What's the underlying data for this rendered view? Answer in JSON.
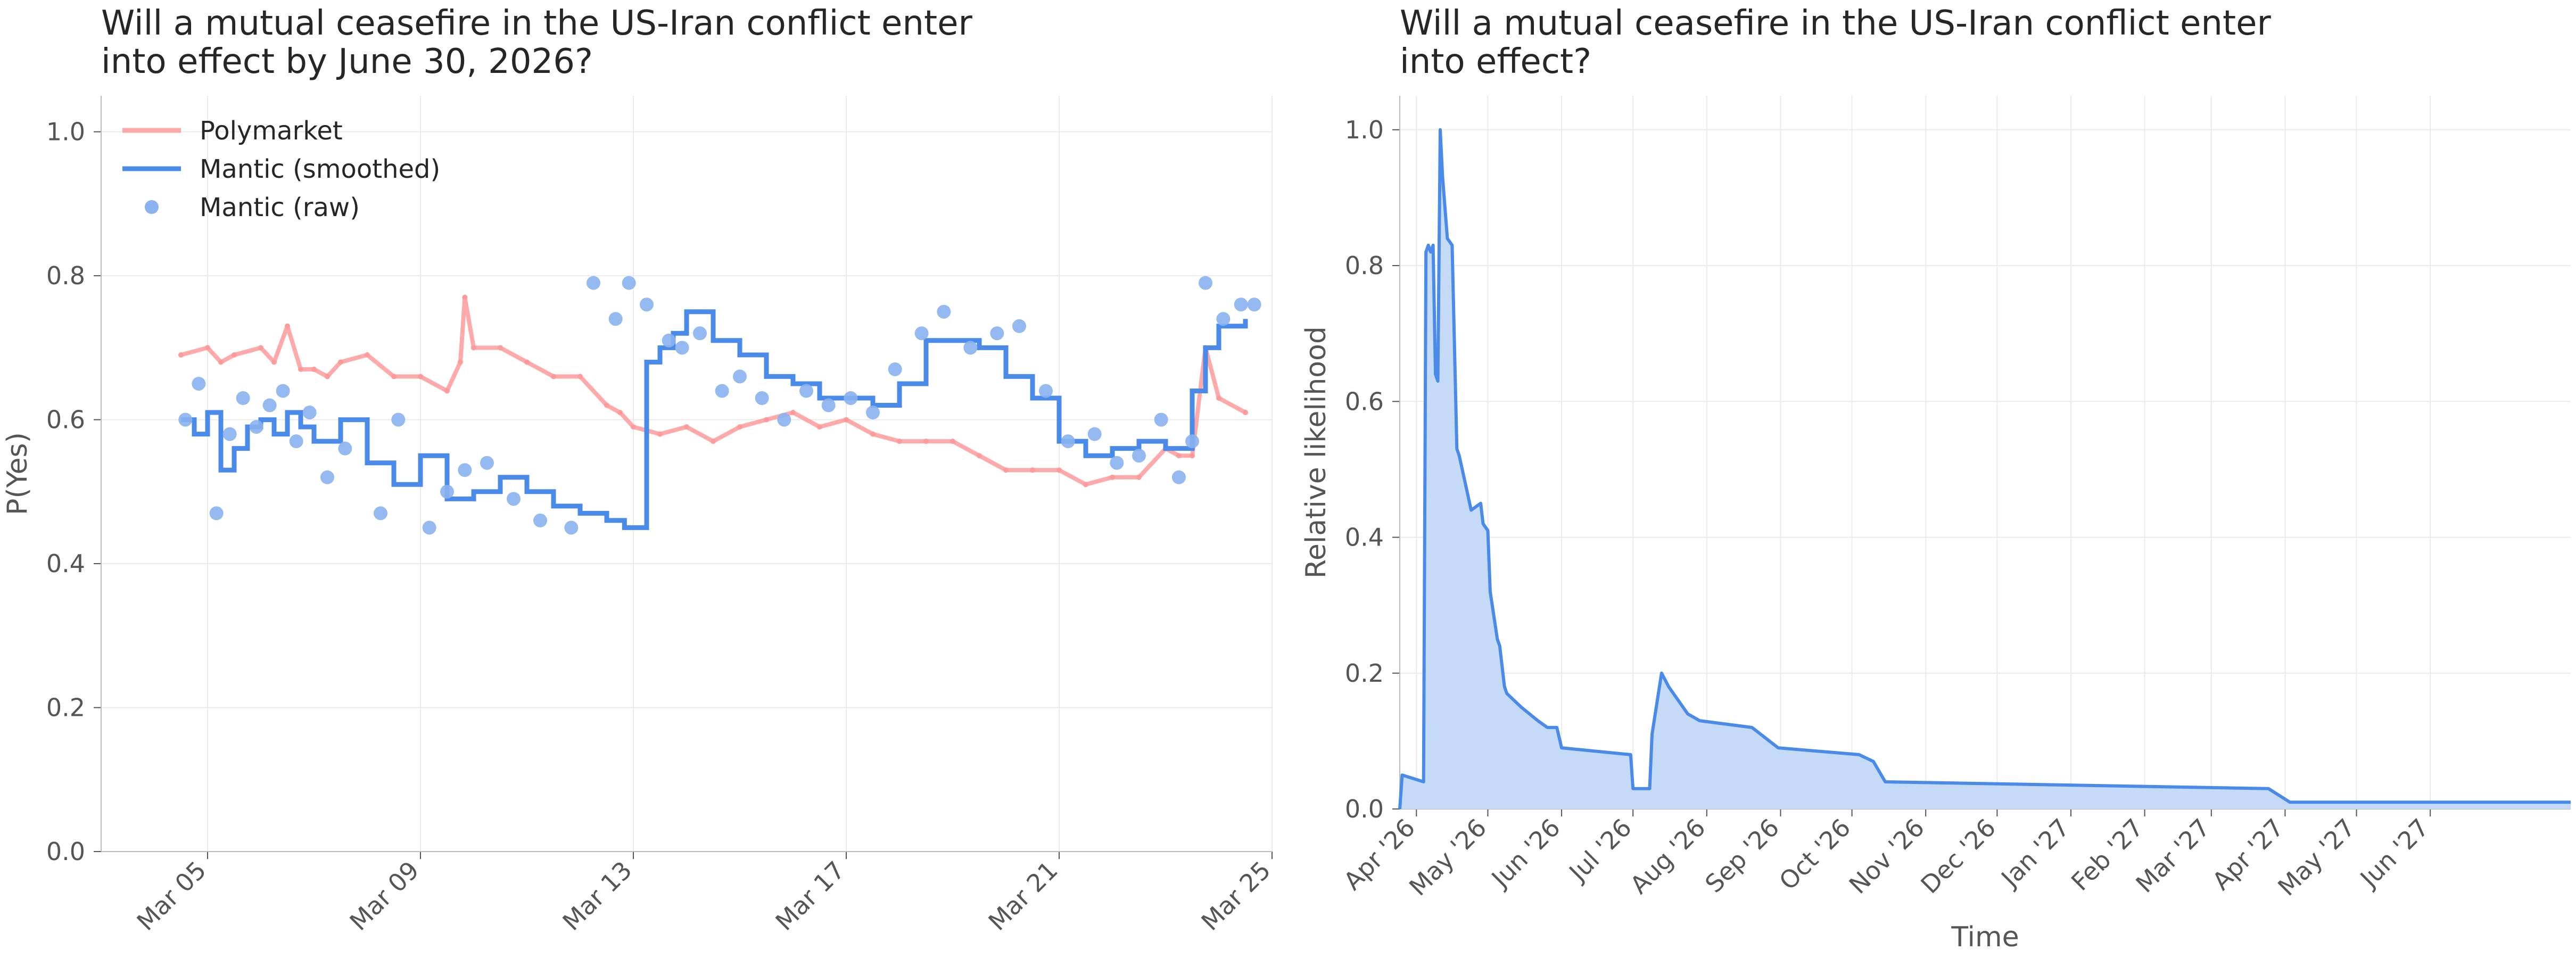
{
  "chart_data": [
    {
      "type": "line",
      "title": "Will a mutual ceasefire in the US-Iran conflict enter\ninto effect by June 30, 2026?",
      "xlabel": "",
      "ylabel": "P(Yes)",
      "xlim": [
        "2026-03-03",
        "2026-03-25"
      ],
      "ylim": [
        0,
        1.05
      ],
      "x_ticks": [
        "Mar 05",
        "Mar 09",
        "Mar 13",
        "Mar 17",
        "Mar 21",
        "Mar 25"
      ],
      "x_tick_dates": [
        "2026-03-05",
        "2026-03-09",
        "2026-03-13",
        "2026-03-17",
        "2026-03-21",
        "2026-03-25"
      ],
      "y_ticks": [
        "0.0",
        "0.2",
        "0.4",
        "0.6",
        "0.8",
        "1.0"
      ],
      "grid": true,
      "legend_position": "top-left",
      "legend": [
        "Polymarket",
        "Mantic (smoothed)",
        "Mantic (raw)"
      ],
      "colors": {
        "polymarket": "#ff9b9b",
        "mantic": "#4a8ae8",
        "raw": "#8ab3f0"
      },
      "series": [
        {
          "name": "Polymarket",
          "style": "line",
          "x": [
            "2026-03-04T12:00",
            "2026-03-05T00:00",
            "2026-03-05T06:00",
            "2026-03-05T12:00",
            "2026-03-06T00:00",
            "2026-03-06T06:00",
            "2026-03-06T12:00",
            "2026-03-06T18:00",
            "2026-03-07T00:00",
            "2026-03-07T06:00",
            "2026-03-07T12:00",
            "2026-03-08T00:00",
            "2026-03-08T12:00",
            "2026-03-09T00:00",
            "2026-03-09T12:00",
            "2026-03-09T18:00",
            "2026-03-09T20:00",
            "2026-03-10T00:00",
            "2026-03-10T12:00",
            "2026-03-11T00:00",
            "2026-03-11T12:00",
            "2026-03-12T00:00",
            "2026-03-12T12:00",
            "2026-03-12T18:00",
            "2026-03-13T00:00",
            "2026-03-13T12:00",
            "2026-03-14T00:00",
            "2026-03-14T12:00",
            "2026-03-15T00:00",
            "2026-03-15T12:00",
            "2026-03-16T00:00",
            "2026-03-16T12:00",
            "2026-03-17T00:00",
            "2026-03-17T12:00",
            "2026-03-18T00:00",
            "2026-03-18T12:00",
            "2026-03-19T00:00",
            "2026-03-19T12:00",
            "2026-03-20T00:00",
            "2026-03-20T12:00",
            "2026-03-21T00:00",
            "2026-03-21T12:00",
            "2026-03-22T00:00",
            "2026-03-22T12:00",
            "2026-03-23T00:00",
            "2026-03-23T06:00",
            "2026-03-23T12:00",
            "2026-03-23T18:00",
            "2026-03-24T00:00",
            "2026-03-24T12:00"
          ],
          "values": [
            0.69,
            0.7,
            0.68,
            0.69,
            0.7,
            0.68,
            0.73,
            0.67,
            0.67,
            0.66,
            0.68,
            0.69,
            0.66,
            0.66,
            0.64,
            0.68,
            0.77,
            0.7,
            0.7,
            0.68,
            0.66,
            0.66,
            0.62,
            0.61,
            0.59,
            0.58,
            0.59,
            0.57,
            0.59,
            0.6,
            0.61,
            0.59,
            0.6,
            0.58,
            0.57,
            0.57,
            0.57,
            0.55,
            0.53,
            0.53,
            0.53,
            0.51,
            0.52,
            0.52,
            0.56,
            0.55,
            0.55,
            0.7,
            0.63,
            0.61
          ]
        },
        {
          "name": "Mantic (smoothed)",
          "style": "step",
          "x": [
            "2026-03-04T12:00",
            "2026-03-04T18:00",
            "2026-03-05T00:00",
            "2026-03-05T06:00",
            "2026-03-05T12:00",
            "2026-03-05T18:00",
            "2026-03-06T00:00",
            "2026-03-06T06:00",
            "2026-03-06T12:00",
            "2026-03-06T18:00",
            "2026-03-07T00:00",
            "2026-03-07T12:00",
            "2026-03-08T00:00",
            "2026-03-08T12:00",
            "2026-03-09T00:00",
            "2026-03-09T12:00",
            "2026-03-10T00:00",
            "2026-03-10T12:00",
            "2026-03-11T00:00",
            "2026-03-11T12:00",
            "2026-03-12T00:00",
            "2026-03-12T12:00",
            "2026-03-12T20:00",
            "2026-03-13T06:00",
            "2026-03-13T12:00",
            "2026-03-13T18:00",
            "2026-03-14T00:00",
            "2026-03-14T12:00",
            "2026-03-15T00:00",
            "2026-03-15T12:00",
            "2026-03-16T00:00",
            "2026-03-16T12:00",
            "2026-03-17T00:00",
            "2026-03-17T12:00",
            "2026-03-18T00:00",
            "2026-03-18T12:00",
            "2026-03-19T00:00",
            "2026-03-19T12:00",
            "2026-03-20T00:00",
            "2026-03-20T12:00",
            "2026-03-21T00:00",
            "2026-03-21T12:00",
            "2026-03-22T00:00",
            "2026-03-22T12:00",
            "2026-03-23T00:00",
            "2026-03-23T06:00",
            "2026-03-23T12:00",
            "2026-03-23T18:00",
            "2026-03-24T00:00",
            "2026-03-24T12:00"
          ],
          "values": [
            0.6,
            0.58,
            0.61,
            0.53,
            0.56,
            0.59,
            0.6,
            0.58,
            0.61,
            0.59,
            0.57,
            0.6,
            0.54,
            0.51,
            0.55,
            0.49,
            0.5,
            0.52,
            0.5,
            0.48,
            0.47,
            0.46,
            0.45,
            0.68,
            0.7,
            0.72,
            0.75,
            0.71,
            0.69,
            0.66,
            0.65,
            0.63,
            0.63,
            0.62,
            0.65,
            0.71,
            0.71,
            0.7,
            0.66,
            0.63,
            0.57,
            0.55,
            0.56,
            0.57,
            0.56,
            0.56,
            0.64,
            0.7,
            0.73,
            0.74
          ]
        },
        {
          "name": "Mantic (raw)",
          "style": "scatter",
          "x": [
            "2026-03-04T14:00",
            "2026-03-04T20:00",
            "2026-03-05T04:00",
            "2026-03-05T10:00",
            "2026-03-05T16:00",
            "2026-03-05T22:00",
            "2026-03-06T04:00",
            "2026-03-06T10:00",
            "2026-03-06T16:00",
            "2026-03-06T22:00",
            "2026-03-07T06:00",
            "2026-03-07T14:00",
            "2026-03-08T06:00",
            "2026-03-08T14:00",
            "2026-03-09T04:00",
            "2026-03-09T12:00",
            "2026-03-09T20:00",
            "2026-03-10T06:00",
            "2026-03-10T18:00",
            "2026-03-11T06:00",
            "2026-03-11T20:00",
            "2026-03-12T06:00",
            "2026-03-12T16:00",
            "2026-03-12T22:00",
            "2026-03-13T06:00",
            "2026-03-13T16:00",
            "2026-03-13T22:00",
            "2026-03-14T06:00",
            "2026-03-14T16:00",
            "2026-03-15T00:00",
            "2026-03-15T10:00",
            "2026-03-15T20:00",
            "2026-03-16T06:00",
            "2026-03-16T16:00",
            "2026-03-17T02:00",
            "2026-03-17T12:00",
            "2026-03-17T22:00",
            "2026-03-18T10:00",
            "2026-03-18T20:00",
            "2026-03-19T08:00",
            "2026-03-19T20:00",
            "2026-03-20T06:00",
            "2026-03-20T18:00",
            "2026-03-21T04:00",
            "2026-03-21T16:00",
            "2026-03-22T02:00",
            "2026-03-22T12:00",
            "2026-03-22T22:00",
            "2026-03-23T06:00",
            "2026-03-23T12:00",
            "2026-03-23T18:00",
            "2026-03-24T02:00",
            "2026-03-24T10:00",
            "2026-03-24T16:00"
          ],
          "values": [
            0.6,
            0.65,
            0.47,
            0.58,
            0.63,
            0.59,
            0.62,
            0.64,
            0.57,
            0.61,
            0.52,
            0.56,
            0.47,
            0.6,
            0.45,
            0.5,
            0.53,
            0.54,
            0.49,
            0.46,
            0.45,
            0.79,
            0.74,
            0.79,
            0.76,
            0.71,
            0.7,
            0.72,
            0.64,
            0.66,
            0.63,
            0.6,
            0.64,
            0.62,
            0.63,
            0.61,
            0.67,
            0.72,
            0.75,
            0.7,
            0.72,
            0.73,
            0.64,
            0.57,
            0.58,
            0.54,
            0.55,
            0.6,
            0.52,
            0.57,
            0.79,
            0.74,
            0.76,
            0.76
          ]
        }
      ]
    },
    {
      "type": "area",
      "title": "Will a mutual ceasefire in the US-Iran conflict enter\ninto effect?",
      "xlabel": "Time",
      "ylabel": "Relative likelihood",
      "xlim": [
        "2026-03-25",
        "2027-07-30"
      ],
      "ylim": [
        0,
        1.05
      ],
      "x_ticks": [
        "Apr '26",
        "May '26",
        "Jun '26",
        "Jul '26",
        "Aug '26",
        "Sep '26",
        "Oct '26",
        "Nov '26",
        "Dec '26",
        "Jan '27",
        "Feb '27",
        "Mar '27",
        "Apr '27",
        "May '27",
        "Jun '27"
      ],
      "x_tick_dates": [
        "2026-04-01",
        "2026-05-01",
        "2026-06-01",
        "2026-07-01",
        "2026-08-01",
        "2026-09-01",
        "2026-10-01",
        "2026-11-01",
        "2026-12-01",
        "2027-01-01",
        "2027-02-01",
        "2027-03-01",
        "2027-04-01",
        "2027-05-01",
        "2027-06-01"
      ],
      "y_ticks": [
        "0.0",
        "0.2",
        "0.4",
        "0.6",
        "0.8",
        "1.0"
      ],
      "grid": true,
      "colors": {
        "line": "#4a8ae8",
        "fill": "#c5daf7"
      },
      "series": [
        {
          "x": [
            "2026-03-25",
            "2026-03-26",
            "2026-04-04",
            "2026-04-05",
            "2026-04-06",
            "2026-04-07",
            "2026-04-08",
            "2026-04-09",
            "2026-04-10",
            "2026-04-11",
            "2026-04-12",
            "2026-04-14",
            "2026-04-16",
            "2026-04-18",
            "2026-04-19",
            "2026-04-24",
            "2026-04-28",
            "2026-04-29",
            "2026-05-01",
            "2026-05-02",
            "2026-05-05",
            "2026-05-06",
            "2026-05-08",
            "2026-05-09",
            "2026-05-12",
            "2026-05-15",
            "2026-05-22",
            "2026-05-26",
            "2026-05-30",
            "2026-06-01",
            "2026-06-30",
            "2026-07-01",
            "2026-07-08",
            "2026-07-09",
            "2026-07-13",
            "2026-07-16",
            "2026-07-24",
            "2026-07-29",
            "2026-08-20",
            "2026-08-31",
            "2026-10-04",
            "2026-10-10",
            "2026-10-15",
            "2027-03-25",
            "2027-04-03",
            "2027-04-07",
            "2027-07-30"
          ],
          "values": [
            0.0,
            0.05,
            0.04,
            0.82,
            0.83,
            0.82,
            0.83,
            0.64,
            0.63,
            1.0,
            0.93,
            0.84,
            0.83,
            0.53,
            0.52,
            0.44,
            0.45,
            0.42,
            0.41,
            0.32,
            0.25,
            0.24,
            0.18,
            0.17,
            0.16,
            0.15,
            0.13,
            0.12,
            0.12,
            0.09,
            0.08,
            0.03,
            0.03,
            0.11,
            0.2,
            0.18,
            0.14,
            0.13,
            0.12,
            0.09,
            0.08,
            0.07,
            0.04,
            0.03,
            0.01,
            0.01,
            0.01
          ]
        }
      ]
    }
  ]
}
